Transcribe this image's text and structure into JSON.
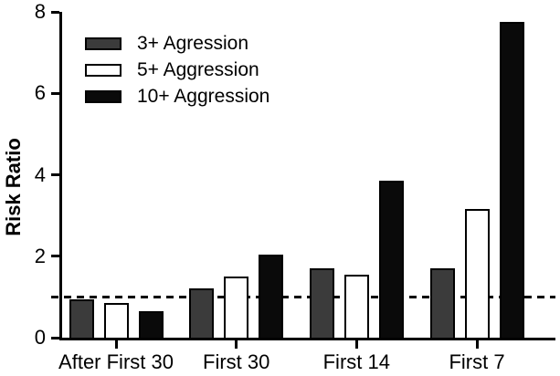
{
  "chart_data": {
    "type": "bar",
    "title": "",
    "xlabel": "",
    "ylabel": "Risk Ratio",
    "ylim": [
      0,
      8
    ],
    "yticks": [
      0,
      2,
      4,
      6,
      8
    ],
    "grid": false,
    "legend_position": "top-left",
    "background": "#ffffff",
    "axis_color": "#000000",
    "reference_line": {
      "y": 1,
      "style": "dashed",
      "color": "#000000"
    },
    "categories": [
      "After First 30",
      "First 30",
      "First 14",
      "First 7"
    ],
    "series": [
      {
        "name": "3+ Agression",
        "color": "#3b3b3b",
        "values": [
          0.95,
          1.2,
          1.7,
          1.7
        ]
      },
      {
        "name": "5+ Aggression",
        "color": "#ffffff",
        "values": [
          0.85,
          1.5,
          1.55,
          3.15
        ]
      },
      {
        "name": "10+ Aggression",
        "color": "#0a0a0a",
        "values": [
          0.65,
          2.05,
          3.85,
          7.75
        ]
      }
    ]
  }
}
